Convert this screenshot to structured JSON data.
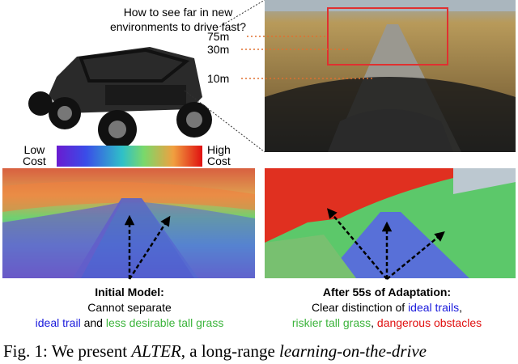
{
  "question": [
    "How to see far in new",
    "environments to drive fast?"
  ],
  "distances": [
    "75m",
    "30m",
    "10m"
  ],
  "colorbar": {
    "low": [
      "Low",
      "Cost"
    ],
    "high": [
      "High",
      "Cost"
    ]
  },
  "panels": [
    {
      "heading": "Initial Model:",
      "line1": "Cannot separate",
      "line2": [
        "ideal trail",
        "and",
        "less desirable tall grass"
      ]
    },
    {
      "heading": "After 55s of Adaptation:",
      "line1": [
        "Clear distinction of",
        "ideal trails",
        ","
      ],
      "line2": [
        "riskier tall grass",
        ",",
        "dangerous obstacles"
      ]
    }
  ],
  "caption": [
    "Fig. 1: We present",
    "ALTER",
    ", a long-range",
    "learning-on-the-drive"
  ]
}
